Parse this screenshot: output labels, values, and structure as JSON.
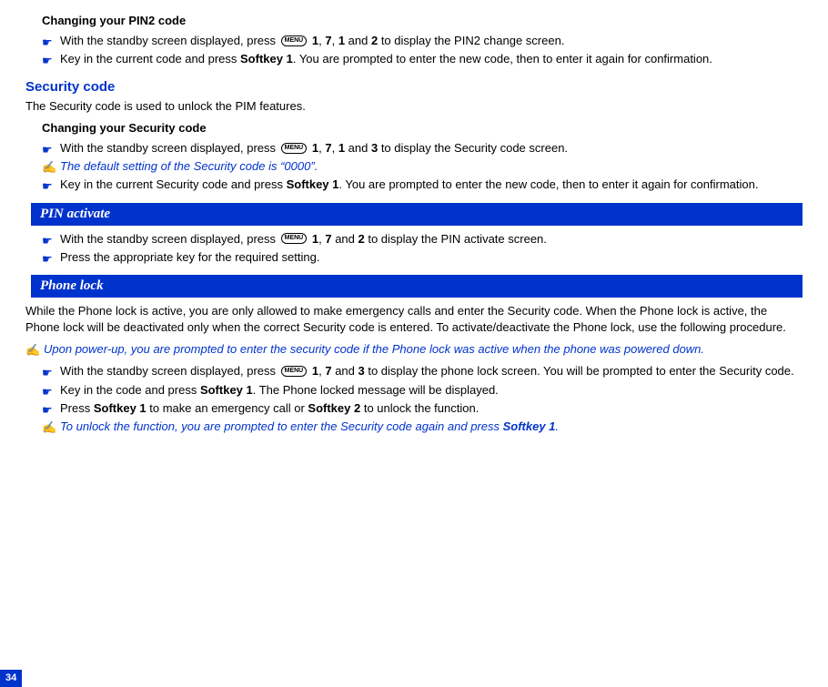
{
  "pin2": {
    "heading": "Changing your PIN2 code",
    "steps": [
      {
        "type": "action",
        "pre": "With the standby screen displayed, press ",
        "menu": "MENU",
        "post1": " ",
        "k1": "1",
        "sep1": ", ",
        "k2": "7",
        "sep2": ", ",
        "k3": "1",
        "sep3": " and ",
        "k4": "2",
        "tail": " to display the PIN2 change screen."
      },
      {
        "type": "action",
        "text_pre": "Key in the current code and press ",
        "bold1": "Softkey 1",
        "text_post": ". You are prompted to enter the new code, then to enter it again for confirmation."
      }
    ]
  },
  "security": {
    "title": "Security code",
    "intro": "The Security code is used to unlock the PIM features.",
    "sub": "Changing your Security code",
    "steps": [
      {
        "type": "action",
        "pre": "With the standby screen displayed, press ",
        "menu": "MENU",
        "post1": " ",
        "k1": "1",
        "sep1": ", ",
        "k2": "7",
        "sep2": ", ",
        "k3": "1",
        "sep3": " and ",
        "k4": "3",
        "tail": " to display the Security code screen."
      },
      {
        "type": "note",
        "text": "The default setting of the Security code is “0000”."
      },
      {
        "type": "action",
        "text_pre": "Key in the current Security code and press ",
        "bold1": "Softkey 1",
        "text_post": ". You are prompted to enter the new code, then to enter it again for confirmation."
      }
    ]
  },
  "pinactivate": {
    "banner": "PIN activate",
    "steps": [
      {
        "type": "action",
        "pre": "With the standby screen displayed, press ",
        "menu": "MENU",
        "post1": " ",
        "k1": "1",
        "sep1": ", ",
        "k2": "7",
        "sep2": " and ",
        "k3": "2",
        "tail": " to display the PIN activate screen."
      },
      {
        "type": "action",
        "text_pre": "Press the appropriate key for the required setting.",
        "bold1": "",
        "text_post": ""
      }
    ]
  },
  "phonelock": {
    "banner": "Phone lock",
    "para": "While the Phone lock is active, you are only allowed to make emergency calls and enter the Security code. When the Phone lock is active, the Phone lock will be deactivated only when the correct Security code is entered. To activate/deactivate the Phone lock, use the following procedure.",
    "note_top": "Upon power-up, you are prompted to enter the security code if the Phone lock was active when the phone was powered down.",
    "steps": [
      {
        "type": "action",
        "pre": "With the standby screen displayed, press ",
        "menu": "MENU",
        "post1": " ",
        "k1": "1",
        "sep1": ", ",
        "k2": "7",
        "sep2": " and ",
        "k3": "3",
        "tail": " to display the phone lock screen. You will be prompted to enter the Security code."
      },
      {
        "type": "action",
        "text_pre": "Key in the code and press ",
        "bold1": "Softkey 1",
        "text_post": ". The Phone locked message will be displayed."
      },
      {
        "type": "action2",
        "t1": "Press ",
        "b1": "Softkey 1",
        "t2": " to make an emergency call or ",
        "b2": "Softkey 2",
        "t3": " to unlock the function."
      },
      {
        "type": "note2",
        "t1": "To unlock the function, you are prompted to enter the Security code again and press ",
        "b1": "Softkey 1",
        "t2": "."
      }
    ]
  },
  "page_number": "34"
}
